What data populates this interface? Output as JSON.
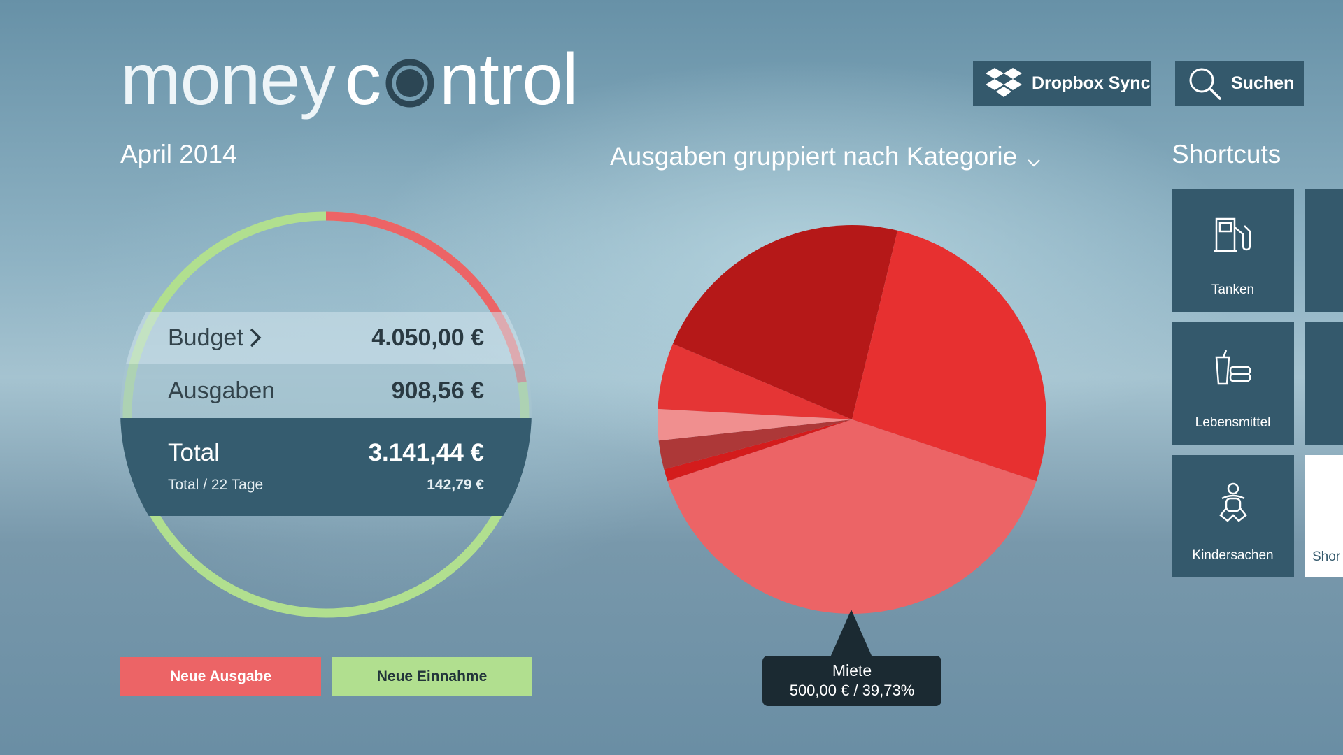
{
  "app": {
    "logo_word1": "money",
    "logo_word2_pre": "c",
    "logo_word2_post": "ntrol"
  },
  "header": {
    "dropbox_label": "Dropbox Sync",
    "search_label": "Suchen"
  },
  "overview": {
    "month": "April 2014",
    "budget_label": "Budget",
    "budget_value": "4.050,00 €",
    "expenses_label": "Ausgaben",
    "expenses_value": "908,56 €",
    "total_label": "Total",
    "total_value": "3.141,44 €",
    "per_day_label": "Total / 22 Tage",
    "per_day_value": "142,79 €",
    "ring_colors": {
      "remaining": "#b1df8f",
      "spent": "#ec6466"
    },
    "ring_spent_fraction": 0.224
  },
  "actions": {
    "new_expense": "Neue Ausgabe",
    "new_income": "Neue Einnahme"
  },
  "chart_section": {
    "title": "Ausgaben gruppiert nach Kategorie",
    "tooltip_title": "Miete",
    "tooltip_value": "500,00 €  /  39,73%"
  },
  "chart_data": {
    "type": "pie",
    "slices": [
      {
        "label": "Miete",
        "value": 39.73,
        "color": "#ec6466"
      },
      {
        "label": "",
        "value": 1.0,
        "color": "#d41c1c"
      },
      {
        "label": "",
        "value": 2.4,
        "color": "#ad3838"
      },
      {
        "label": "",
        "value": 2.6,
        "color": "#f08f8f"
      },
      {
        "label": "",
        "value": 5.5,
        "color": "#e53535"
      },
      {
        "label": "",
        "value": 22.4,
        "color": "#b51818"
      },
      {
        "label": "",
        "value": 26.37,
        "color": "#e73030"
      }
    ]
  },
  "shortcuts": {
    "title": "Shortcuts",
    "items": [
      {
        "label": "Tanken",
        "icon": "fuel-pump-icon"
      },
      {
        "label": "Lebensmittel",
        "icon": "groceries-icon"
      },
      {
        "label": "Kindersachen",
        "icon": "baby-icon"
      }
    ],
    "partial_label": "Shor"
  }
}
